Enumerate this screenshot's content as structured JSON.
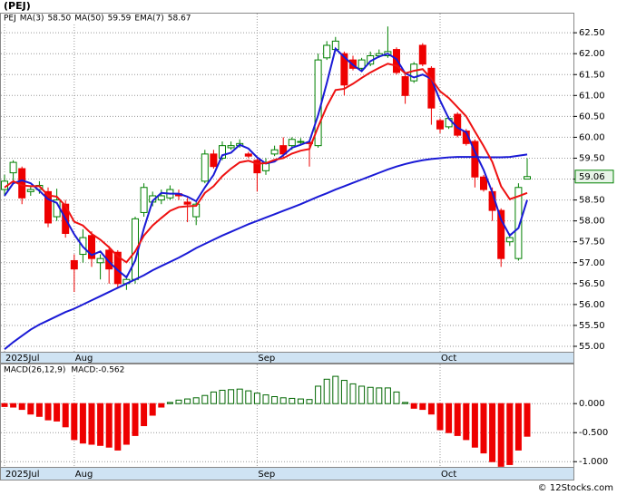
{
  "title": "(PEJ)",
  "ticker": "PEJ",
  "footer": "© 12Stocks.com",
  "chart_data": [
    {
      "type": "candlestick",
      "categories": [
        "2025Jul",
        null,
        null,
        null,
        null,
        null,
        null,
        null,
        "Aug",
        null,
        null,
        null,
        null,
        null,
        null,
        null,
        null,
        null,
        null,
        null,
        null,
        null,
        null,
        null,
        null,
        null,
        null,
        null,
        null,
        "Sep",
        null,
        null,
        null,
        null,
        null,
        null,
        null,
        null,
        null,
        null,
        null,
        null,
        null,
        null,
        null,
        null,
        null,
        null,
        null,
        null,
        "Oct",
        null,
        null,
        null,
        null,
        null,
        null,
        null,
        null,
        null,
        null
      ],
      "open": [
        58.75,
        59.15,
        59.25,
        58.7,
        58.75,
        58.7,
        58.1,
        58.4,
        57.05,
        57.2,
        57.65,
        57.0,
        57.3,
        57.25,
        56.5,
        56.6,
        58.2,
        58.45,
        58.5,
        58.55,
        58.65,
        58.45,
        58.1,
        58.95,
        59.6,
        59.5,
        59.75,
        59.8,
        59.6,
        59.45,
        59.2,
        59.6,
        59.8,
        59.8,
        59.88,
        59.88,
        59.8,
        61.9,
        62.1,
        62.0,
        61.85,
        61.65,
        61.75,
        61.95,
        61.95,
        62.1,
        61.45,
        61.35,
        62.2,
        61.65,
        60.4,
        60.25,
        60.55,
        60.15,
        59.9,
        59.05,
        58.7,
        58.25,
        57.5,
        57.1,
        59.0
      ],
      "high": [
        59.1,
        59.45,
        59.3,
        58.85,
        58.95,
        58.8,
        58.77,
        58.5,
        57.2,
        57.8,
        57.75,
        57.2,
        57.4,
        57.3,
        56.7,
        58.1,
        58.9,
        58.7,
        58.75,
        58.85,
        58.75,
        58.55,
        58.45,
        59.7,
        59.7,
        59.9,
        59.9,
        59.95,
        59.65,
        59.5,
        59.5,
        59.8,
        60.0,
        60.0,
        59.98,
        59.95,
        62.0,
        62.3,
        62.4,
        62.05,
        61.95,
        61.9,
        62.05,
        62.1,
        62.65,
        62.15,
        61.5,
        61.8,
        62.25,
        61.7,
        60.45,
        60.5,
        60.6,
        60.2,
        59.95,
        59.1,
        58.8,
        58.3,
        57.7,
        58.9,
        59.5
      ],
      "low": [
        58.6,
        58.9,
        58.4,
        58.6,
        58.65,
        57.85,
        58.0,
        57.6,
        56.3,
        57.0,
        56.9,
        56.6,
        56.5,
        56.4,
        56.35,
        56.5,
        58.1,
        58.35,
        58.4,
        58.5,
        58.5,
        57.97,
        57.9,
        58.9,
        59.25,
        59.45,
        59.7,
        59.75,
        59.5,
        58.7,
        59.1,
        59.55,
        59.5,
        59.7,
        59.8,
        59.3,
        59.75,
        61.85,
        62.05,
        61.0,
        61.6,
        61.6,
        61.7,
        61.9,
        61.9,
        61.5,
        60.8,
        61.3,
        61.7,
        60.3,
        60.1,
        60.2,
        60.0,
        59.8,
        58.8,
        58.7,
        58.0,
        56.9,
        57.4,
        57.05,
        59.0
      ],
      "close": [
        58.95,
        59.4,
        58.55,
        58.75,
        58.85,
        57.95,
        58.5,
        57.7,
        56.85,
        57.6,
        57.1,
        57.1,
        56.85,
        56.5,
        56.6,
        58.05,
        58.8,
        58.6,
        58.6,
        58.75,
        58.6,
        58.4,
        58.4,
        59.6,
        59.3,
        59.8,
        59.8,
        59.85,
        59.55,
        59.15,
        59.4,
        59.7,
        59.6,
        59.95,
        59.9,
        59.85,
        61.85,
        62.2,
        62.3,
        61.25,
        61.65,
        61.85,
        61.95,
        62.0,
        62.05,
        61.55,
        61.0,
        61.75,
        61.75,
        60.7,
        60.2,
        60.45,
        60.05,
        59.85,
        59.05,
        58.75,
        58.25,
        57.1,
        57.6,
        58.8,
        59.06
      ],
      "up_color": "#008000",
      "down_color": "#ee0000",
      "last_value": 59.06,
      "series": [
        {
          "name": "MA(3)",
          "value_label": "58.50",
          "color": "#1a1ad6",
          "values": [
            58.6,
            58.9,
            58.97,
            58.9,
            58.72,
            58.52,
            58.43,
            58.05,
            57.68,
            57.38,
            57.18,
            57.27,
            57.02,
            56.82,
            56.65,
            57.05,
            57.82,
            58.48,
            58.67,
            58.65,
            58.65,
            58.58,
            58.47,
            58.8,
            59.1,
            59.57,
            59.63,
            59.82,
            59.73,
            59.52,
            59.37,
            59.42,
            59.57,
            59.75,
            59.82,
            59.9,
            60.53,
            61.3,
            62.12,
            61.92,
            61.73,
            61.58,
            61.82,
            61.93,
            62.0,
            61.87,
            61.53,
            61.43,
            61.5,
            61.4,
            60.88,
            60.45,
            60.23,
            60.12,
            59.65,
            59.22,
            58.68,
            58.03,
            57.65,
            57.83,
            58.5
          ]
        },
        {
          "name": "MA(50)",
          "value_label": "59.59",
          "color": "#1a1ad6",
          "values": [
            54.93,
            55.1,
            55.25,
            55.4,
            55.52,
            55.62,
            55.72,
            55.82,
            55.9,
            56.0,
            56.1,
            56.2,
            56.3,
            56.4,
            56.5,
            56.6,
            56.7,
            56.82,
            56.92,
            57.02,
            57.12,
            57.23,
            57.35,
            57.45,
            57.55,
            57.65,
            57.74,
            57.83,
            57.92,
            58.0,
            58.08,
            58.16,
            58.24,
            58.32,
            58.4,
            58.49,
            58.58,
            58.66,
            58.75,
            58.83,
            58.91,
            58.99,
            59.07,
            59.15,
            59.23,
            59.3,
            59.36,
            59.41,
            59.45,
            59.48,
            59.5,
            59.52,
            59.53,
            59.53,
            59.53,
            59.52,
            59.52,
            59.52,
            59.53,
            59.56,
            59.59
          ]
        },
        {
          "name": "EMA(7)",
          "value_label": "58.67",
          "color": "#ee1111",
          "values": [
            58.8,
            58.95,
            58.85,
            58.83,
            58.83,
            58.61,
            58.58,
            58.36,
            57.98,
            57.89,
            57.69,
            57.55,
            57.37,
            57.15,
            57.01,
            57.27,
            57.65,
            57.89,
            58.07,
            58.24,
            58.33,
            58.35,
            58.36,
            58.67,
            58.83,
            59.07,
            59.25,
            59.4,
            59.44,
            59.37,
            59.38,
            59.46,
            59.5,
            59.61,
            59.68,
            59.72,
            60.25,
            60.74,
            61.13,
            61.16,
            61.28,
            61.42,
            61.55,
            61.66,
            61.76,
            61.71,
            61.53,
            61.59,
            61.63,
            61.4,
            61.1,
            60.94,
            60.72,
            60.5,
            60.14,
            59.79,
            59.41,
            58.83,
            58.52,
            58.59,
            58.67
          ]
        }
      ],
      "ylim": [
        54.87,
        62.98
      ],
      "yticks": [
        {
          "value": 55,
          "label": "55.00"
        },
        {
          "value": 55.5,
          "label": "55.50"
        },
        {
          "value": 56,
          "label": "56.00"
        },
        {
          "value": 56.5,
          "label": "56.50"
        },
        {
          "value": 57,
          "label": "57.00"
        },
        {
          "value": 57.5,
          "label": "57.50"
        },
        {
          "value": 58,
          "label": "58.00"
        },
        {
          "value": 58.5,
          "label": "58.50"
        },
        {
          "value": 59,
          "label": "59.00"
        },
        {
          "value": 59.5,
          "label": "59.50"
        },
        {
          "value": 60,
          "label": "60.00"
        },
        {
          "value": 60.5,
          "label": "60.50"
        },
        {
          "value": 61,
          "label": "61.00"
        },
        {
          "value": 61.5,
          "label": "61.50"
        },
        {
          "value": 62,
          "label": "62.00"
        },
        {
          "value": 62.5,
          "label": "62.50"
        }
      ],
      "grid": true
    },
    {
      "type": "bar",
      "title": "MACD(26,12,9)",
      "legend": "MACD:-0.562",
      "pos_color": "#006600",
      "neg_color": "#ee0000",
      "values": [
        -0.05,
        -0.06,
        -0.1,
        -0.18,
        -0.22,
        -0.28,
        -0.3,
        -0.4,
        -0.62,
        -0.68,
        -0.7,
        -0.72,
        -0.75,
        -0.8,
        -0.7,
        -0.55,
        -0.38,
        -0.2,
        -0.06,
        0.02,
        0.06,
        0.08,
        0.1,
        0.14,
        0.2,
        0.23,
        0.24,
        0.25,
        0.22,
        0.18,
        0.15,
        0.12,
        0.1,
        0.09,
        0.08,
        0.07,
        0.3,
        0.42,
        0.47,
        0.4,
        0.34,
        0.3,
        0.28,
        0.27,
        0.27,
        0.2,
        0.02,
        -0.08,
        -0.1,
        -0.18,
        -0.45,
        -0.5,
        -0.55,
        -0.62,
        -0.75,
        -0.85,
        -1.0,
        -1.08,
        -1.05,
        -0.8,
        -0.562
      ],
      "ylim": [
        -1.09,
        0.69
      ],
      "yticks": [
        {
          "value": 0,
          "label": "0.000"
        },
        {
          "value": -0.5,
          "label": "-0.500"
        },
        {
          "value": -1,
          "label": "-1.000"
        }
      ],
      "grid": true
    }
  ]
}
